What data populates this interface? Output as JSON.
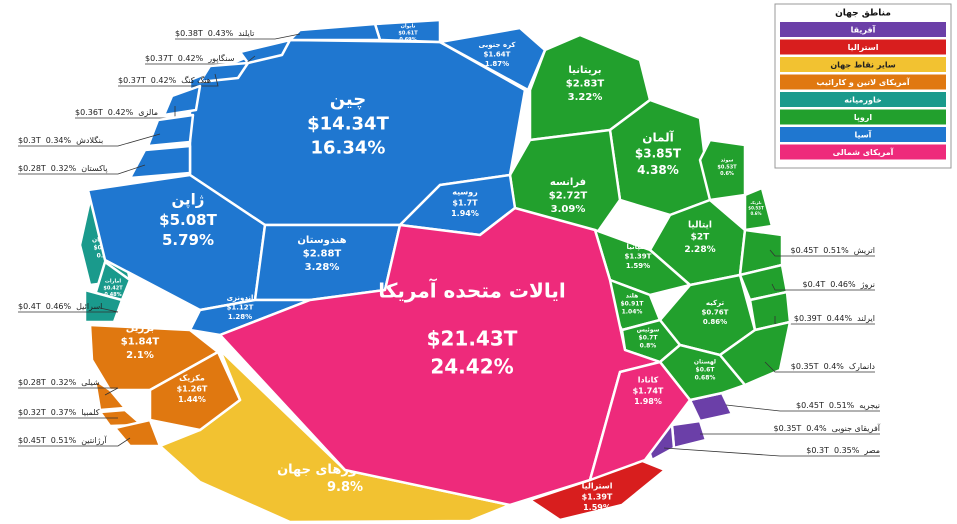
{
  "chart_data": {
    "type": "voronoi",
    "legend_title": "مناطق جهان",
    "regions": [
      {
        "name": "آفریقا",
        "color": "#6b3fa8",
        "cells": [
          {
            "name": "نیجریه",
            "value": 0.45,
            "value_label": "$0.45T",
            "share": 0.51,
            "share_label": "0.51%"
          },
          {
            "name": "آفریقای جنوبی",
            "value": 0.35,
            "value_label": "$0.35T",
            "share": 0.4,
            "share_label": "0.4%"
          },
          {
            "name": "مصر",
            "value": 0.3,
            "value_label": "$0.3T",
            "share": 0.35,
            "share_label": "0.35%"
          }
        ]
      },
      {
        "name": "استرالیا",
        "color": "#d81e1e",
        "cells": [
          {
            "name": "استرالیا",
            "value": 1.39,
            "value_label": "$1.39T",
            "share": 1.59,
            "share_label": "1.59%"
          }
        ]
      },
      {
        "name": "سایر نقاط جهان",
        "color": "#f2c231",
        "cells": [
          {
            "name": "سایر کشورهای جهان",
            "share": 9.8,
            "share_label": "9.8%"
          }
        ]
      },
      {
        "name": "آمریکای لاتین و کارائیب",
        "color": "#e07810",
        "cells": [
          {
            "name": "برزیل",
            "value": 1.84,
            "value_label": "$1.84T",
            "share": 2.1,
            "share_label": "2.1%"
          },
          {
            "name": "مکزیک",
            "value": 1.26,
            "value_label": "$1.26T",
            "share": 1.44,
            "share_label": "1.44%"
          },
          {
            "name": "شیلی",
            "value": 0.28,
            "value_label": "$0.28T",
            "share": 0.32,
            "share_label": "0.32%"
          },
          {
            "name": "کلمبیا",
            "value": 0.32,
            "value_label": "$0.32T",
            "share": 0.37,
            "share_label": "0.37%"
          },
          {
            "name": "آرژانتین",
            "value": 0.45,
            "value_label": "$0.45T",
            "share": 0.51,
            "share_label": "0.51%"
          }
        ]
      },
      {
        "name": "خاورمیانه",
        "color": "#1a9a8c",
        "cells": [
          {
            "name": "عربستان",
            "value": 0.79,
            "value_label": "$0.79T",
            "share": 0.9,
            "share_label": "0.9%"
          },
          {
            "name": "امارات",
            "value": 0.42,
            "value_label": "$0.42T",
            "share": 0.48,
            "share_label": "0.48%"
          },
          {
            "name": "اسرائیل",
            "value": 0.4,
            "value_label": "$0.4T",
            "share": 0.46,
            "share_label": "0.46%"
          }
        ]
      },
      {
        "name": "اروپا",
        "color": "#22a02d",
        "cells": [
          {
            "name": "بریتانیا",
            "value": 2.83,
            "value_label": "$2.83T",
            "share": 3.22,
            "share_label": "3.22%"
          },
          {
            "name": "آلمان",
            "value": 3.85,
            "value_label": "$3.85T",
            "share": 4.38,
            "share_label": "4.38%"
          },
          {
            "name": "فرانسه",
            "value": 2.72,
            "value_label": "$2.72T",
            "share": 3.09,
            "share_label": "3.09%"
          },
          {
            "name": "ایتالیا",
            "value": 2,
            "value_label": "$2T",
            "share": 2.28,
            "share_label": "2.28%"
          },
          {
            "name": "اسپانیا",
            "value": 1.39,
            "value_label": "$1.39T",
            "share": 1.59,
            "share_label": "1.59%"
          },
          {
            "name": "هلند",
            "value": 0.91,
            "value_label": "$0.91T",
            "share": 1.04,
            "share_label": "1.04%"
          },
          {
            "name": "سوئیس",
            "value": 0.7,
            "value_label": "$0.7T",
            "share": 0.8,
            "share_label": "0.8%"
          },
          {
            "name": "ترکیه",
            "value": 0.76,
            "value_label": "$0.76T",
            "share": 0.86,
            "share_label": "0.86%"
          },
          {
            "name": "لهستان",
            "value": 0.6,
            "value_label": "$0.6T",
            "share": 0.68,
            "share_label": "0.68%"
          },
          {
            "name": "سوئد",
            "value": 0.53,
            "value_label": "$0.53T",
            "share": 0.6,
            "share_label": "0.6%"
          },
          {
            "name": "بلژیک",
            "value": 0.53,
            "value_label": "$0.53T",
            "share": 0.6,
            "share_label": "0.6%"
          },
          {
            "name": "اتریش",
            "value": 0.45,
            "value_label": "$0.45T",
            "share": 0.51,
            "share_label": "0.51%"
          },
          {
            "name": "نروژ",
            "value": 0.4,
            "value_label": "$0.4T",
            "share": 0.46,
            "share_label": "0.46%"
          },
          {
            "name": "ایرلند",
            "value": 0.39,
            "value_label": "$0.39T",
            "share": 0.44,
            "share_label": "0.44%"
          },
          {
            "name": "دانمارک",
            "value": 0.35,
            "value_label": "$0.35T",
            "share": 0.4,
            "share_label": "0.4%"
          }
        ]
      },
      {
        "name": "آسیا",
        "color": "#1f77d0",
        "cells": [
          {
            "name": "چین",
            "value": 14.34,
            "value_label": "$14.34T",
            "share": 16.34,
            "share_label": "16.34%"
          },
          {
            "name": "ژاپن",
            "value": 5.08,
            "value_label": "$5.08T",
            "share": 5.79,
            "share_label": "5.79%"
          },
          {
            "name": "هندوستان",
            "value": 2.88,
            "value_label": "$2.88T",
            "share": 3.28,
            "share_label": "3.28%"
          },
          {
            "name": "روسیه",
            "value": 1.7,
            "value_label": "$1.7T",
            "share": 1.94,
            "share_label": "1.94%"
          },
          {
            "name": "اندونزی",
            "value": 1.12,
            "value_label": "$1.12T",
            "share": 1.28,
            "share_label": "1.28%"
          },
          {
            "name": "کره جنوبی",
            "value": 1.64,
            "value_label": "$1.64T",
            "share": 1.87,
            "share_label": "1.87%"
          },
          {
            "name": "تایوان",
            "value": 0.61,
            "value_label": "$0.61T",
            "share": 0.69,
            "share_label": "0.69%"
          },
          {
            "name": "تایلند",
            "value": 0.38,
            "value_label": "$0.38T",
            "share": 0.43,
            "share_label": "0.43%"
          },
          {
            "name": "سنگاپور",
            "value": 0.37,
            "value_label": "$0.37T",
            "share": 0.42,
            "share_label": "0.42%"
          },
          {
            "name": "هنگ کنگ",
            "value": 0.37,
            "value_label": "$0.37T",
            "share": 0.42,
            "share_label": "0.42%"
          },
          {
            "name": "مالزی",
            "value": 0.36,
            "value_label": "$0.36T",
            "share": 0.42,
            "share_label": "0.42%"
          },
          {
            "name": "بنگلادش",
            "value": 0.3,
            "value_label": "$0.3T",
            "share": 0.34,
            "share_label": "0.34%"
          },
          {
            "name": "پاکستان",
            "value": 0.28,
            "value_label": "$0.28T",
            "share": 0.32,
            "share_label": "0.32%"
          }
        ]
      },
      {
        "name": "آمریکای شمالی",
        "color": "#ee2a7b",
        "cells": [
          {
            "name": "ایالات متحده آمریکا",
            "value": 21.43,
            "value_label": "$21.43T",
            "share": 24.42,
            "share_label": "24.42%"
          },
          {
            "name": "کانادا",
            "value": 1.74,
            "value_label": "$1.74T",
            "share": 1.98,
            "share_label": "1.98%"
          }
        ]
      }
    ]
  }
}
